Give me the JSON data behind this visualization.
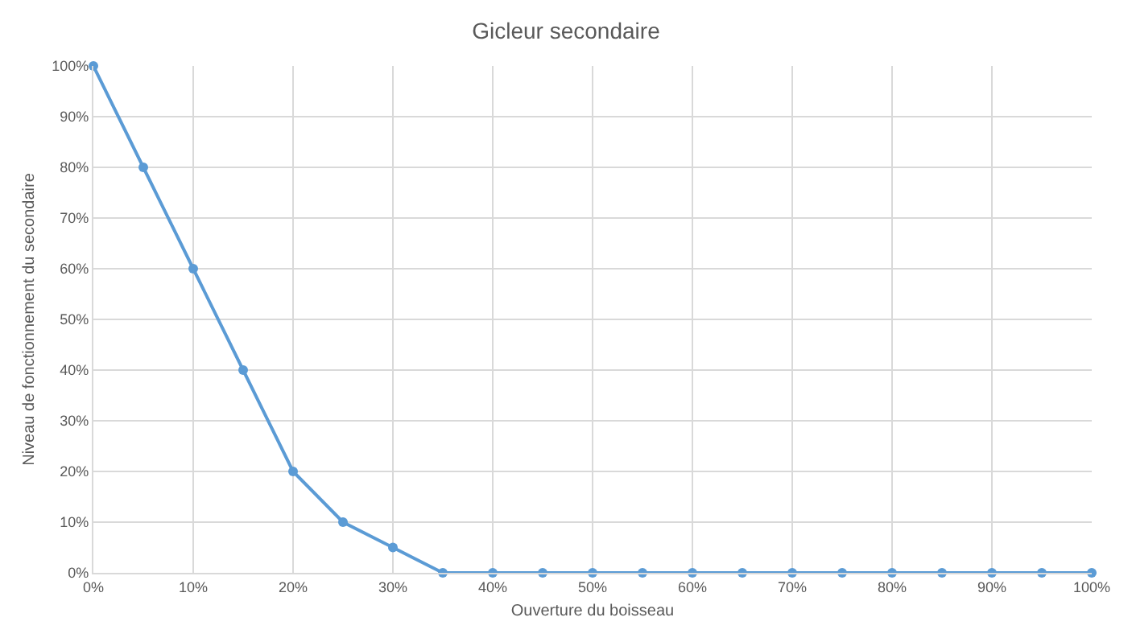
{
  "chart_data": {
    "type": "line",
    "title": "Gicleur secondaire",
    "xlabel": "Ouverture du boisseau",
    "ylabel": "Niveau de fonctionnement du secondaire",
    "x": [
      0,
      5,
      10,
      15,
      20,
      25,
      30,
      35,
      40,
      45,
      50,
      55,
      60,
      65,
      70,
      75,
      80,
      85,
      90,
      95,
      100
    ],
    "series": [
      {
        "color": "#5b9bd5",
        "values": [
          100,
          80,
          60,
          40,
          20,
          10,
          5,
          0,
          0,
          0,
          0,
          0,
          0,
          0,
          0,
          0,
          0,
          0,
          0,
          0,
          0
        ]
      }
    ],
    "xlim": [
      0,
      100
    ],
    "ylim": [
      0,
      100
    ],
    "xticks": [
      {
        "value": 0,
        "label": "0%"
      },
      {
        "value": 10,
        "label": "10%"
      },
      {
        "value": 20,
        "label": "20%"
      },
      {
        "value": 30,
        "label": "30%"
      },
      {
        "value": 40,
        "label": "40%"
      },
      {
        "value": 50,
        "label": "50%"
      },
      {
        "value": 60,
        "label": "60%"
      },
      {
        "value": 70,
        "label": "70%"
      },
      {
        "value": 80,
        "label": "80%"
      },
      {
        "value": 90,
        "label": "90%"
      },
      {
        "value": 100,
        "label": "100%"
      }
    ],
    "yticks": [
      {
        "value": 0,
        "label": "0%"
      },
      {
        "value": 10,
        "label": "10%"
      },
      {
        "value": 20,
        "label": "20%"
      },
      {
        "value": 30,
        "label": "30%"
      },
      {
        "value": 40,
        "label": "40%"
      },
      {
        "value": 50,
        "label": "50%"
      },
      {
        "value": 60,
        "label": "60%"
      },
      {
        "value": 70,
        "label": "70%"
      },
      {
        "value": 80,
        "label": "80%"
      },
      {
        "value": 90,
        "label": "90%"
      },
      {
        "value": 100,
        "label": "100%"
      }
    ],
    "grid": true,
    "marker": "circle",
    "line_style": "solid"
  }
}
